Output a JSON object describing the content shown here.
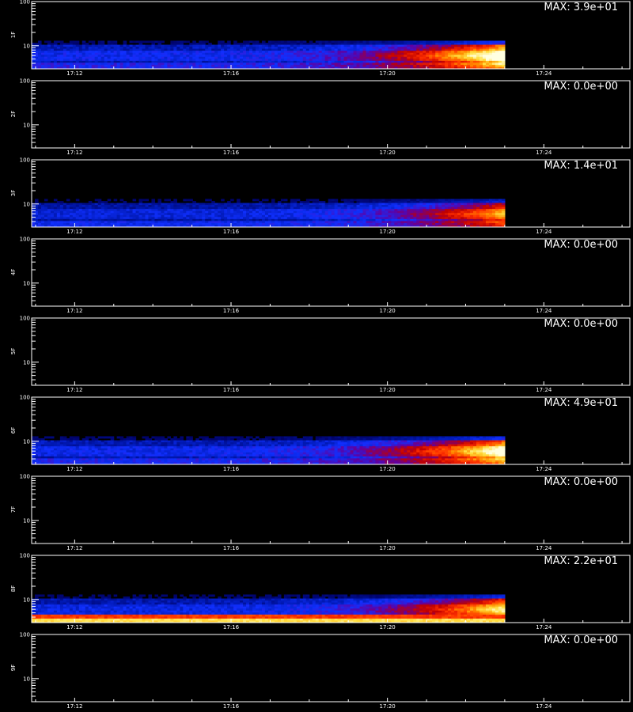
{
  "chart_data": {
    "type": "heatmap",
    "x_ticks": [
      "17:12",
      "17:16",
      "17:20",
      "17:24"
    ],
    "x_tick_minutes": [
      0,
      4,
      8,
      12
    ],
    "x_range_minutes": [
      -1.1,
      14.2
    ],
    "data_end_minute": 11.0,
    "y_scale": "log",
    "y_range": [
      3,
      100
    ],
    "y_ticks": [
      "100",
      "10"
    ],
    "colors": {
      "background": "#000000",
      "axis": "#ffffff",
      "scale": [
        "#000000",
        "#000060",
        "#0018b0",
        "#1030ff",
        "#6000a0",
        "#c00000",
        "#ff3000",
        "#ff9000",
        "#ffe040",
        "#ffffe0"
      ]
    },
    "panels": [
      {
        "label": "1F",
        "max": "MAX: 3.9e+01",
        "intensity": 1.0,
        "low_band": false
      },
      {
        "label": "2F",
        "max": "MAX: 0.0e+00",
        "intensity": 0.0,
        "low_band": false
      },
      {
        "label": "3F",
        "max": "MAX: 1.4e+01",
        "intensity": 0.75,
        "low_band": false
      },
      {
        "label": "4F",
        "max": "MAX: 0.0e+00",
        "intensity": 0.0,
        "low_band": false
      },
      {
        "label": "5F",
        "max": "MAX: 0.0e+00",
        "intensity": 0.0,
        "low_band": false
      },
      {
        "label": "6F",
        "max": "MAX: 4.9e+01",
        "intensity": 0.95,
        "low_band": false
      },
      {
        "label": "7F",
        "max": "MAX: 0.0e+00",
        "intensity": 0.0,
        "low_band": false
      },
      {
        "label": "8F",
        "max": "MAX: 2.2e+01",
        "intensity": 0.85,
        "low_band": true
      },
      {
        "label": "9F",
        "max": "MAX: 0.0e+00",
        "intensity": 0.0,
        "low_band": false
      }
    ]
  },
  "footer": ""
}
